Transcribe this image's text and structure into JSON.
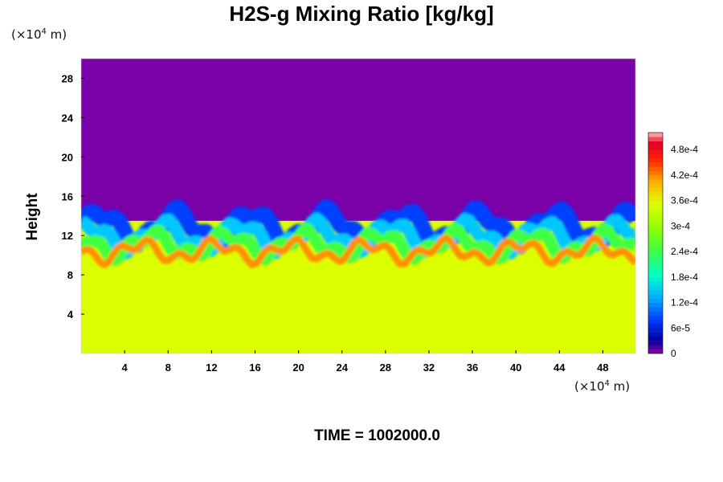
{
  "chart_data": {
    "type": "heatmap",
    "title": "H2S-g Mixing Ratio [kg/kg]",
    "ylabel": "Height",
    "x_unit": {
      "pre": "(×10",
      "exp": "4",
      "post": " m)"
    },
    "y_unit": {
      "pre": "(×10",
      "exp": "4",
      "post": " m)"
    },
    "time_label": "TIME = 1002000.0",
    "xlim": [
      0,
      51
    ],
    "ylim": [
      0,
      30
    ],
    "x_ticks": [
      4,
      8,
      12,
      16,
      20,
      24,
      28,
      32,
      36,
      40,
      44,
      48
    ],
    "y_ticks": [
      4,
      8,
      12,
      16,
      20,
      24,
      28
    ],
    "colorbar": {
      "range": [
        0,
        0.00052
      ],
      "tick_values": [
        0,
        6e-05,
        0.00012,
        0.00018,
        0.00024,
        0.0003,
        0.00036,
        0.00042,
        0.00048
      ],
      "tick_labels": [
        "0",
        "6e-5",
        "1.2e-4",
        "1.8e-4",
        "2.4e-4",
        "3e-4",
        "3.6e-4",
        "4.2e-4",
        "4.8e-4"
      ]
    },
    "field_summary": {
      "upper_region_value": 0,
      "lower_region_value": 0.00035,
      "interface_height": 13.5
    }
  }
}
